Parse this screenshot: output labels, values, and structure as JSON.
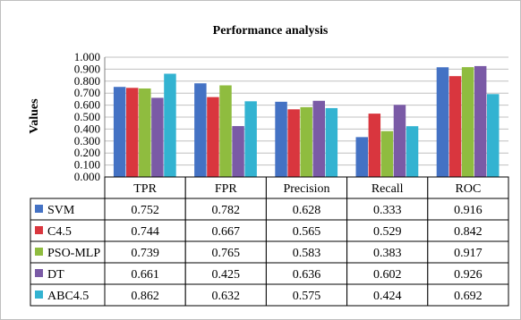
{
  "chart_data": {
    "type": "bar",
    "title": "Performance analysis",
    "ylabel": "Values",
    "xlabel": "",
    "ylim": [
      0,
      1
    ],
    "yticks": [
      "0.000",
      "0.100",
      "0.200",
      "0.300",
      "0.400",
      "0.500",
      "0.600",
      "0.700",
      "0.800",
      "0.900",
      "1.000"
    ],
    "grid": true,
    "legend": "data-table",
    "categories": [
      "TPR",
      "FPR",
      "Precision",
      "Recall",
      "ROC"
    ],
    "series": [
      {
        "name": "SVM",
        "color": "#4472c4",
        "values": [
          0.752,
          0.782,
          0.628,
          0.333,
          0.916
        ],
        "labels": [
          "0.752",
          "0.782",
          "0.628",
          "0.333",
          "0.916"
        ]
      },
      {
        "name": "C4.5",
        "color": "#d9363e",
        "values": [
          0.744,
          0.667,
          0.565,
          0.529,
          0.842
        ],
        "labels": [
          "0.744",
          "0.667",
          "0.565",
          "0.529",
          "0.842"
        ]
      },
      {
        "name": "PSO-MLP",
        "color": "#8fbc3f",
        "values": [
          0.739,
          0.765,
          0.583,
          0.383,
          0.917
        ],
        "labels": [
          "0.739",
          "0.765",
          "0.583",
          "0.383",
          "0.917"
        ]
      },
      {
        "name": "DT",
        "color": "#7a5aa6",
        "values": [
          0.661,
          0.425,
          0.636,
          0.602,
          0.926
        ],
        "labels": [
          "0.661",
          "0.425",
          "0.636",
          "0.602",
          "0.926"
        ]
      },
      {
        "name": "ABC4.5",
        "color": "#33b3d1",
        "values": [
          0.862,
          0.632,
          0.575,
          0.424,
          0.692
        ],
        "labels": [
          "0.862",
          "0.632",
          "0.575",
          "0.424",
          "0.692"
        ]
      }
    ]
  }
}
